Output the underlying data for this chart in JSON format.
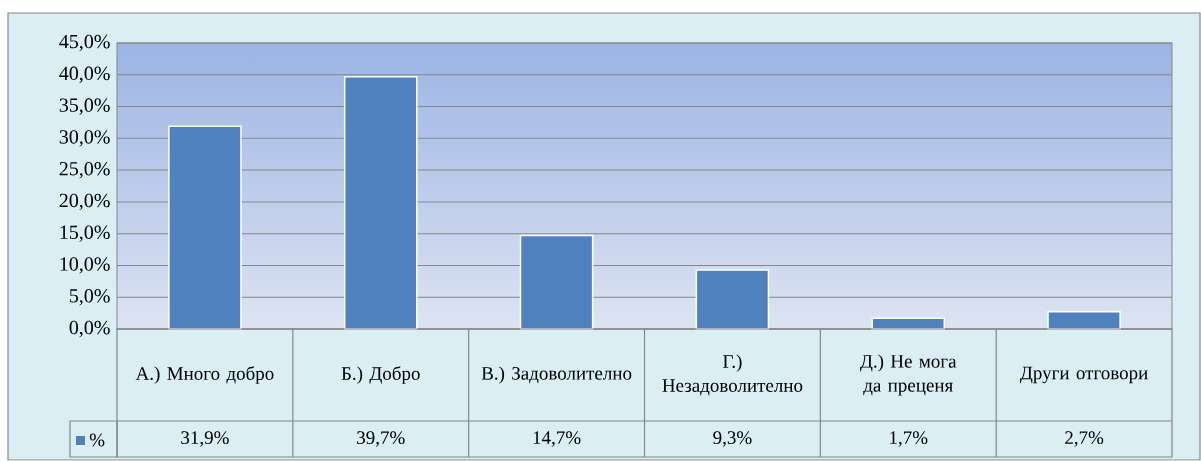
{
  "chart_data": {
    "type": "bar",
    "categories": [
      "А.) Много добро",
      "Б.) Добро",
      "В.) Задоволително",
      "Г.) Незадоволително",
      "Д.) Не мога да преценя",
      "Други отговори"
    ],
    "series": [
      {
        "name": "%",
        "color": "#4f81bd",
        "values": [
          31.9,
          39.7,
          14.7,
          9.3,
          1.7,
          2.7
        ],
        "value_labels": [
          "31,9%",
          "39,7%",
          "14,7%",
          "9,3%",
          "1,7%",
          "2,7%"
        ]
      }
    ],
    "ylim": [
      0,
      45
    ],
    "yticks": [
      {
        "value": 0,
        "label": "0,0%"
      },
      {
        "value": 5,
        "label": "5,0%"
      },
      {
        "value": 10,
        "label": "10,0%"
      },
      {
        "value": 15,
        "label": "15,0%"
      },
      {
        "value": 20,
        "label": "20,0%"
      },
      {
        "value": 25,
        "label": "25,0%"
      },
      {
        "value": 30,
        "label": "30,0%"
      },
      {
        "value": 35,
        "label": "35,0%"
      },
      {
        "value": 40,
        "label": "40,0%"
      },
      {
        "value": 45,
        "label": "45,0%"
      }
    ],
    "grid": "y",
    "legend": "bottom left"
  }
}
